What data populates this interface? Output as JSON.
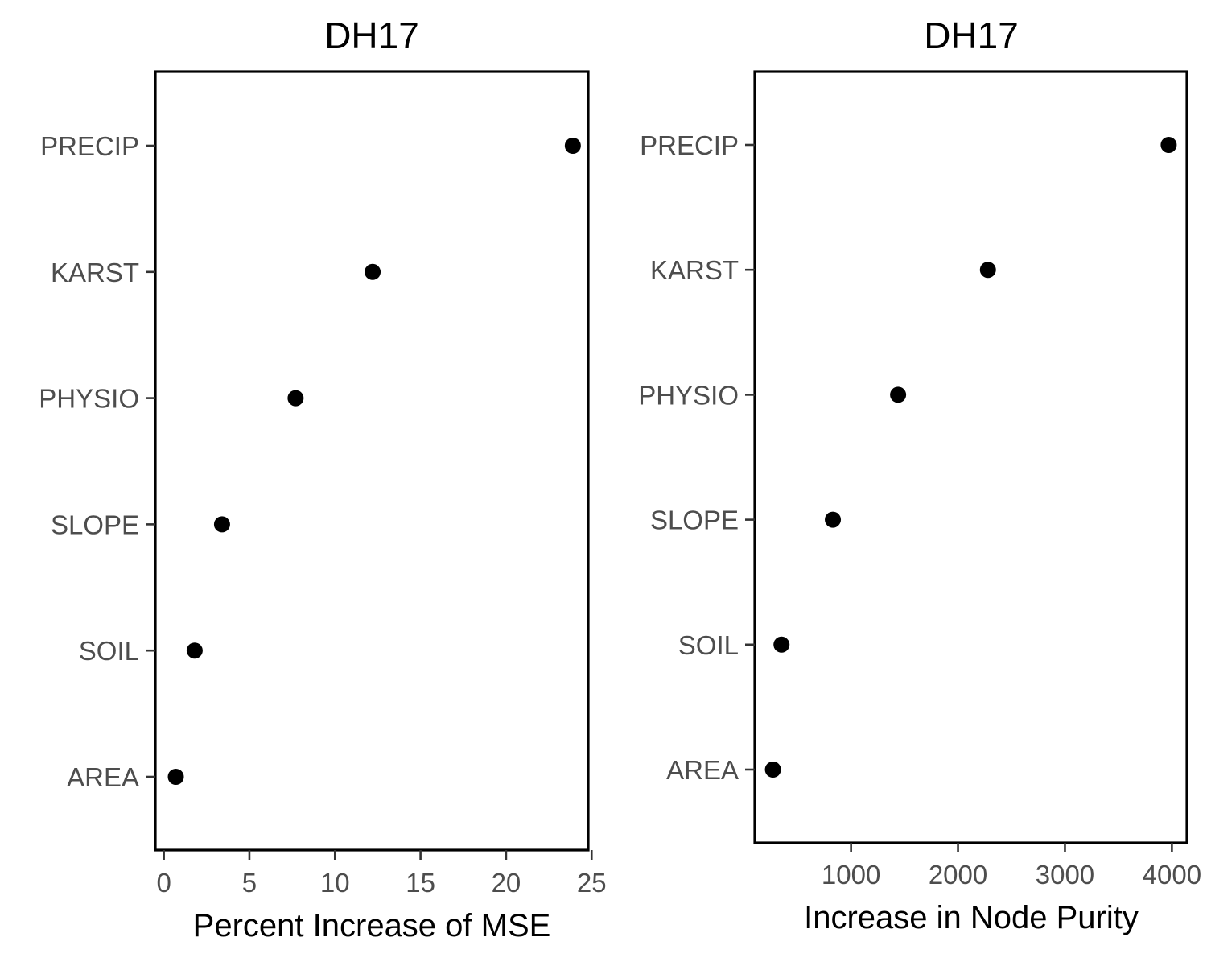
{
  "chart_data": [
    {
      "type": "scatter",
      "title": "DH17",
      "xlabel": "Percent Increase of MSE",
      "ylabel": "",
      "categories": [
        "AREA",
        "SOIL",
        "SLOPE",
        "PHYSIO",
        "KARST",
        "PRECIP"
      ],
      "values": [
        0.7,
        1.8,
        3.4,
        7.7,
        12.2,
        23.9
      ],
      "xlim": [
        -0.5,
        24.8
      ],
      "xticks": [
        0,
        5,
        10,
        15,
        20,
        25
      ],
      "xtick_labels": [
        "0",
        "5",
        "10",
        "15",
        "20",
        "25"
      ],
      "grid": false,
      "point_color": "#000000"
    },
    {
      "type": "scatter",
      "title": "DH17",
      "xlabel": "Increase in Node Purity",
      "ylabel": "",
      "categories": [
        "AREA",
        "SOIL",
        "SLOPE",
        "PHYSIO",
        "KARST",
        "PRECIP"
      ],
      "values": [
        270,
        350,
        830,
        1440,
        2280,
        3970
      ],
      "xlim": [
        100,
        4140
      ],
      "xticks": [
        1000,
        2000,
        3000,
        4000
      ],
      "xtick_labels": [
        "1000",
        "2000",
        "3000",
        "4000"
      ],
      "grid": false,
      "point_color": "#000000"
    }
  ]
}
